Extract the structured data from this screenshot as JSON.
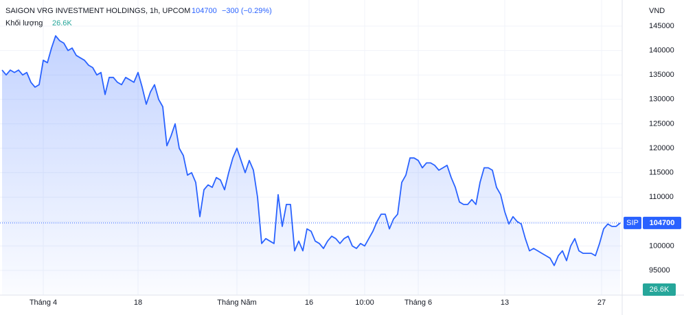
{
  "header": {
    "symbol": "SAIGON VRG INVESTMENT HOLDINGS, 1h, UPCOM",
    "change": "−300 (−0.29%)",
    "volume_label": "Khối lượng",
    "volume_value": "26.6K",
    "currency": "VND",
    "tag": "SIP"
  },
  "chart_data": {
    "type": "line",
    "series": [
      {
        "name": "SIP",
        "color": "#2962ff",
        "values": [
          136000,
          135000,
          136000,
          135500,
          136000,
          135000,
          135500,
          133500,
          132500,
          133000,
          138000,
          137500,
          140500,
          143000,
          142000,
          141500,
          140000,
          140500,
          139000,
          138500,
          138000,
          137000,
          136500,
          135000,
          135500,
          131000,
          134500,
          134500,
          133500,
          133000,
          134500,
          134000,
          133500,
          135500,
          132500,
          129000,
          131500,
          133000,
          130000,
          128500,
          120500,
          122500,
          125000,
          120000,
          118500,
          114500,
          115000,
          113000,
          106000,
          111500,
          112500,
          112000,
          114000,
          113500,
          111500,
          115000,
          118000,
          120000,
          117500,
          115000,
          117500,
          115500,
          110000,
          100500,
          101500,
          101000,
          100500,
          110500,
          104000,
          108500,
          108500,
          99000,
          101000,
          99000,
          103500,
          103000,
          101000,
          100500,
          99500,
          101000,
          102000,
          101500,
          100500,
          101500,
          102000,
          100000,
          99500,
          100500,
          100000,
          101500,
          103000,
          105000,
          106500,
          106500,
          103500,
          105500,
          106500,
          113000,
          114500,
          118000,
          118000,
          117500,
          116000,
          117000,
          117000,
          116500,
          115500,
          116000,
          116500,
          114000,
          112000,
          109000,
          108500,
          108500,
          109500,
          108500,
          113000,
          116000,
          116000,
          115500,
          112000,
          110500,
          107000,
          104500,
          106000,
          105000,
          104500,
          101500,
          99000,
          99500,
          99000,
          98500,
          98000,
          97500,
          96000,
          98000,
          99000,
          97000,
          100000,
          101500,
          99000,
          98500,
          98500,
          98500,
          98000,
          100500,
          103500,
          104500,
          104000,
          104000,
          104700
        ]
      }
    ],
    "xlim": [
      -0.5,
      150.5
    ],
    "xticks": [
      {
        "value": 10,
        "label": "Tháng 4"
      },
      {
        "value": 33,
        "label": "18"
      },
      {
        "value": 57,
        "label": "Tháng Năm"
      },
      {
        "value": 74.5,
        "label": "16"
      },
      {
        "value": 88,
        "label": "10:00"
      },
      {
        "value": 101,
        "label": "Tháng 6"
      },
      {
        "value": 122,
        "label": "13"
      },
      {
        "value": 145.5,
        "label": "27"
      }
    ],
    "ylim": [
      90000,
      150000
    ],
    "yticks": [
      95000,
      100000,
      105000,
      110000,
      115000,
      120000,
      125000,
      130000,
      135000,
      140000,
      145000
    ],
    "grid": true
  }
}
